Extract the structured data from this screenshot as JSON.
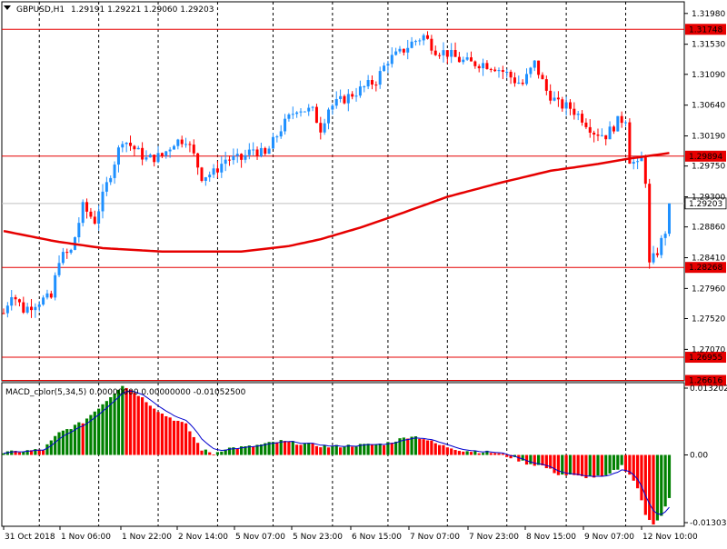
{
  "colors": {
    "background": "#ffffff",
    "axis": "#000000",
    "grid": "#000000",
    "bull_candle": "#1e90ff",
    "bear_candle": "#ff0000",
    "moving_average": "#e60000",
    "level_line": "#e60000",
    "bid_line": "#c0c0c0",
    "macd_up": "#008000",
    "macd_down": "#ff0000",
    "macd_signal": "#0000cd"
  },
  "header": {
    "symbol_label": "GBPUSD,H1",
    "ohlc_label": "1.29191 1.29221 1.29060 1.29203",
    "collapse_icon": "triangle-down-icon"
  },
  "macd": {
    "label": "MACD_color(5,34,5) 0.00000000 0.00000000 -0.01052500",
    "ticks": [
      "0.013202",
      "0.00",
      "-0.013033"
    ]
  },
  "chart_data": {
    "type": "candlestick",
    "price_axis": {
      "ylim": [
        1.2661,
        1.3215
      ],
      "ticks": [
        "1.31980",
        "1.31530",
        "1.31090",
        "1.30640",
        "1.30190",
        "1.29750",
        "1.29300",
        "1.28860",
        "1.28410",
        "1.27960",
        "1.27520",
        "1.27070"
      ]
    },
    "x_labels": [
      "31 Oct 2018",
      "1 Nov 06:00",
      "1 Nov 22:00",
      "2 Nov 14:00",
      "5 Nov 07:00",
      "5 Nov 23:00",
      "6 Nov 15:00",
      "7 Nov 07:00",
      "7 Nov 23:00",
      "8 Nov 15:00",
      "9 Nov 07:00",
      "12 Nov 10:00"
    ],
    "horizontal_levels": [
      {
        "value": 1.31748,
        "label": "1.31748"
      },
      {
        "value": 1.29894,
        "label": "1.29894"
      },
      {
        "value": 1.28268,
        "label": "1.28268"
      },
      {
        "value": 1.26955,
        "label": "1.26955"
      },
      {
        "value": 1.26616,
        "label": "1.26616"
      }
    ],
    "bid": {
      "value": 1.29203,
      "label": "1.29203"
    },
    "price_path": [
      [
        0,
        1.276
      ],
      [
        2,
        1.279
      ],
      [
        5,
        1.2765
      ],
      [
        8,
        1.2775
      ],
      [
        10,
        1.278
      ],
      [
        12,
        1.2782
      ],
      [
        14,
        1.284
      ],
      [
        17,
        1.285
      ],
      [
        20,
        1.2915
      ],
      [
        23,
        1.2895
      ],
      [
        27,
        1.2965
      ],
      [
        30,
        1.3015
      ],
      [
        33,
        1.3
      ],
      [
        36,
        1.2985
      ],
      [
        40,
        1.299
      ],
      [
        43,
        1.301
      ],
      [
        46,
        1.3015
      ],
      [
        48,
        1.299
      ],
      [
        50,
        1.296
      ],
      [
        53,
        1.2965
      ],
      [
        56,
        1.2985
      ],
      [
        60,
        1.2985
      ],
      [
        63,
        1.3
      ],
      [
        66,
        1.299
      ],
      [
        70,
        1.303
      ],
      [
        74,
        1.306
      ],
      [
        78,
        1.3055
      ],
      [
        80,
        1.303
      ],
      [
        82,
        1.306
      ],
      [
        85,
        1.307
      ],
      [
        88,
        1.308
      ],
      [
        91,
        1.309
      ],
      [
        94,
        1.31
      ],
      [
        97,
        1.313
      ],
      [
        100,
        1.314
      ],
      [
        103,
        1.3155
      ],
      [
        106,
        1.3165
      ],
      [
        109,
        1.3145
      ],
      [
        112,
        1.314
      ],
      [
        115,
        1.313
      ],
      [
        118,
        1.3125
      ],
      [
        121,
        1.3125
      ],
      [
        124,
        1.312
      ],
      [
        127,
        1.311
      ],
      [
        129,
        1.31
      ],
      [
        131,
        1.3095
      ],
      [
        134,
        1.3125
      ],
      [
        137,
        1.3085
      ],
      [
        140,
        1.3065
      ],
      [
        143,
        1.306
      ],
      [
        146,
        1.3045
      ],
      [
        149,
        1.3025
      ],
      [
        152,
        1.302
      ],
      [
        155,
        1.304
      ],
      [
        157,
        1.3045
      ],
      [
        158,
        1.2985
      ],
      [
        160,
        1.2975
      ],
      [
        161,
        1.2985
      ],
      [
        162,
        1.2955
      ],
      [
        163,
        1.283
      ],
      [
        165,
        1.285
      ],
      [
        167,
        1.288
      ],
      [
        168,
        1.292
      ]
    ],
    "moving_average": [
      [
        0,
        1.288
      ],
      [
        13,
        1.2865
      ],
      [
        25,
        1.2855
      ],
      [
        40,
        1.285
      ],
      [
        60,
        1.285
      ],
      [
        72,
        1.2858
      ],
      [
        80,
        1.2868
      ],
      [
        90,
        1.2885
      ],
      [
        100,
        1.2905
      ],
      [
        112,
        1.293
      ],
      [
        125,
        1.295
      ],
      [
        138,
        1.2968
      ],
      [
        150,
        1.2978
      ],
      [
        158,
        1.2986
      ],
      [
        168,
        1.2994
      ]
    ],
    "macd_axis": {
      "ylim": [
        -0.013033,
        0.013202
      ]
    },
    "macd_path": [
      [
        0,
        0.0004
      ],
      [
        10,
        0.001
      ],
      [
        14,
        0.004
      ],
      [
        20,
        0.006
      ],
      [
        26,
        0.01
      ],
      [
        30,
        0.0128
      ],
      [
        34,
        0.011
      ],
      [
        40,
        0.0075
      ],
      [
        46,
        0.0055
      ],
      [
        50,
        0.001
      ],
      [
        53,
        0.0002
      ],
      [
        56,
        0.0012
      ],
      [
        62,
        0.0015
      ],
      [
        70,
        0.0025
      ],
      [
        76,
        0.002
      ],
      [
        82,
        0.0015
      ],
      [
        90,
        0.0018
      ],
      [
        96,
        0.002
      ],
      [
        103,
        0.0035
      ],
      [
        106,
        0.003
      ],
      [
        110,
        0.0018
      ],
      [
        116,
        0.0008
      ],
      [
        124,
        0.0004
      ],
      [
        128,
        -0.0004
      ],
      [
        132,
        -0.0015
      ],
      [
        136,
        -0.002
      ],
      [
        140,
        -0.0035
      ],
      [
        146,
        -0.004
      ],
      [
        152,
        -0.004
      ],
      [
        156,
        -0.002
      ],
      [
        158,
        -0.0035
      ],
      [
        160,
        -0.006
      ],
      [
        162,
        -0.011
      ],
      [
        164,
        -0.0125
      ],
      [
        166,
        -0.011
      ],
      [
        168,
        -0.008
      ]
    ]
  }
}
